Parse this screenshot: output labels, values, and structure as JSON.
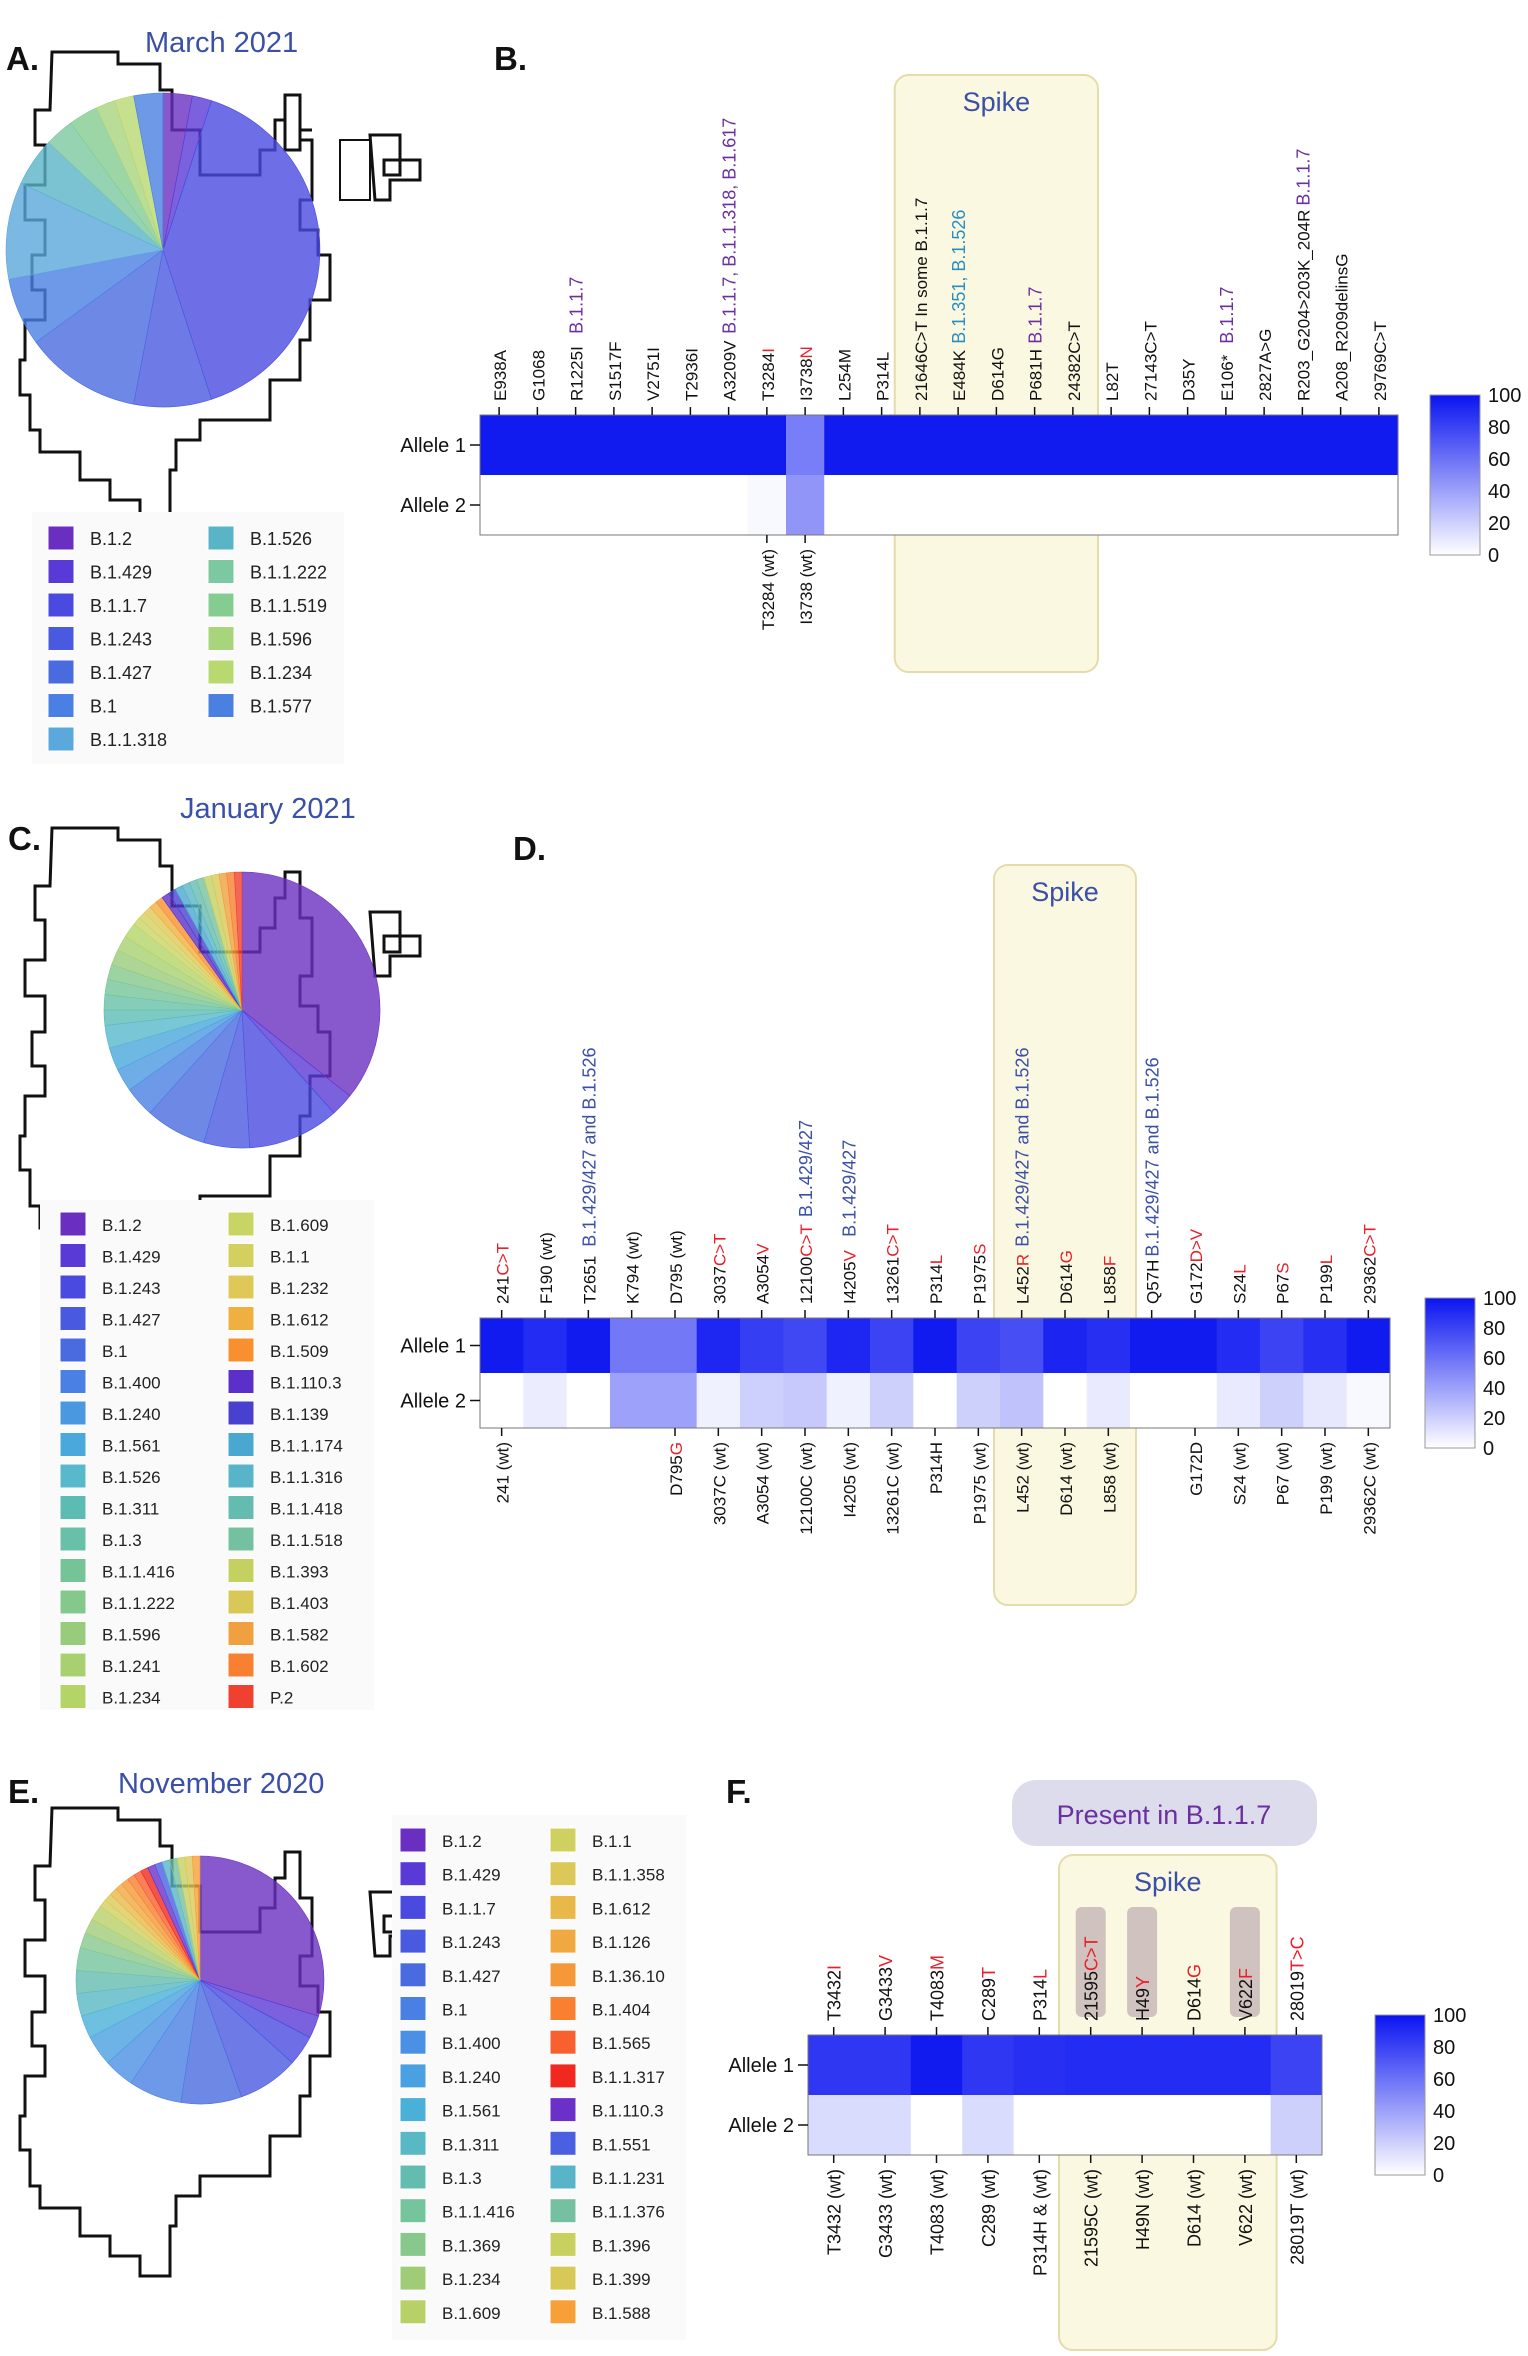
{
  "panels": {
    "A": {
      "letter": "A.",
      "title": "March 2021"
    },
    "B": {
      "letter": "B."
    },
    "C": {
      "letter": "C.",
      "title": "January 2021"
    },
    "D": {
      "letter": "D."
    },
    "E": {
      "letter": "E.",
      "title": "November 2020"
    },
    "F": {
      "letter": "F."
    }
  },
  "colors": {
    "title_blue": "#3a4fa8",
    "purple": "#6b2fa0",
    "teal": "#2a8fc0",
    "red": "#e8202a",
    "spike_fill": "#fbf8e2",
    "spike_stroke": "#e4dcaa",
    "heat_max": "#0a14f0",
    "present_box": "#dcdcec"
  },
  "legends": {
    "A": [
      {
        "label": "B.1.2",
        "color": "#6a2fc0"
      },
      {
        "label": "B.1.429",
        "color": "#5a3ad6"
      },
      {
        "label": "B.1.1.7",
        "color": "#4a4ae0"
      },
      {
        "label": "B.1.243",
        "color": "#4a5ae0"
      },
      {
        "label": "B.1.427",
        "color": "#4a6ae0"
      },
      {
        "label": "B.1",
        "color": "#4a80e4"
      },
      {
        "label": "B.1.1.318",
        "color": "#5aa8dc"
      },
      {
        "label": "B.1.526",
        "color": "#5ab4c8"
      },
      {
        "label": "B.1.1.222",
        "color": "#7cc8a0"
      },
      {
        "label": "B.1.1.519",
        "color": "#84cc90"
      },
      {
        "label": "B.1.596",
        "color": "#a8d47c"
      },
      {
        "label": "B.1.234",
        "color": "#b8d870"
      },
      {
        "label": "B.1.577",
        "color": "#4a80e0"
      }
    ],
    "C": [
      {
        "label": "B.1.2",
        "color": "#6a2fc0"
      },
      {
        "label": "B.1.429",
        "color": "#5a3ad6"
      },
      {
        "label": "B.1.243",
        "color": "#4a4ae0"
      },
      {
        "label": "B.1.427",
        "color": "#4a5ae0"
      },
      {
        "label": "B.1",
        "color": "#4a6ae0"
      },
      {
        "label": "B.1.400",
        "color": "#4a80e4"
      },
      {
        "label": "B.1.240",
        "color": "#4a98e0"
      },
      {
        "label": "B.1.561",
        "color": "#4aa8dc"
      },
      {
        "label": "B.1.526",
        "color": "#58b8cc"
      },
      {
        "label": "B.1.311",
        "color": "#5cbcb4"
      },
      {
        "label": "B.1.3",
        "color": "#68c0a8"
      },
      {
        "label": "B.1.1.416",
        "color": "#74c498"
      },
      {
        "label": "B.1.1.222",
        "color": "#84c88c"
      },
      {
        "label": "B.1.596",
        "color": "#98cc7c"
      },
      {
        "label": "B.1.241",
        "color": "#a8d070"
      },
      {
        "label": "B.1.234",
        "color": "#b4d468"
      },
      {
        "label": "B.1.609",
        "color": "#c8d464"
      },
      {
        "label": "B.1.1",
        "color": "#d4d060"
      },
      {
        "label": "B.1.232",
        "color": "#e0c858"
      },
      {
        "label": "B.1.612",
        "color": "#f0b040"
      },
      {
        "label": "B.1.509",
        "color": "#f89030"
      },
      {
        "label": "B.1.110.3",
        "color": "#5a30c8"
      },
      {
        "label": "B.1.139",
        "color": "#4a40d0"
      },
      {
        "label": "B.1.1.174",
        "color": "#4aa8d0"
      },
      {
        "label": "B.1.1.316",
        "color": "#58b4c8"
      },
      {
        "label": "B.1.1.418",
        "color": "#64bcb0"
      },
      {
        "label": "B.1.1.518",
        "color": "#74c0a0"
      },
      {
        "label": "B.1.393",
        "color": "#c4d060"
      },
      {
        "label": "B.1.403",
        "color": "#d8c858"
      },
      {
        "label": "B.1.582",
        "color": "#f0a040"
      },
      {
        "label": "B.1.602",
        "color": "#f88030"
      },
      {
        "label": "P.2",
        "color": "#f04030"
      }
    ],
    "E": [
      {
        "label": "B.1.2",
        "color": "#6a2fc0"
      },
      {
        "label": "B.1.429",
        "color": "#5a3ad6"
      },
      {
        "label": "B.1.1.7",
        "color": "#4a4ae0"
      },
      {
        "label": "B.1.243",
        "color": "#4a5ae0"
      },
      {
        "label": "B.1.427",
        "color": "#4a6ae0"
      },
      {
        "label": "B.1",
        "color": "#4a80e4"
      },
      {
        "label": "B.1.400",
        "color": "#4a90e4"
      },
      {
        "label": "B.1.240",
        "color": "#4aa0e0"
      },
      {
        "label": "B.1.561",
        "color": "#4ab0d8"
      },
      {
        "label": "B.1.311",
        "color": "#58b8c4"
      },
      {
        "label": "B.1.3",
        "color": "#64bcb0"
      },
      {
        "label": "B.1.1.416",
        "color": "#74c49c"
      },
      {
        "label": "B.1.369",
        "color": "#88c88c"
      },
      {
        "label": "B.1.234",
        "color": "#a0cc78"
      },
      {
        "label": "B.1.609",
        "color": "#b8d068"
      },
      {
        "label": "B.1.1",
        "color": "#d0d060"
      },
      {
        "label": "B.1.1.358",
        "color": "#dcc858"
      },
      {
        "label": "B.1.612",
        "color": "#e8b848"
      },
      {
        "label": "B.1.126",
        "color": "#f0a840"
      },
      {
        "label": "B.1.36.10",
        "color": "#f49838"
      },
      {
        "label": "B.1.404",
        "color": "#f88030"
      },
      {
        "label": "B.1.565",
        "color": "#f86030"
      },
      {
        "label": "B.1.1.317",
        "color": "#f02820"
      },
      {
        "label": "B.1.110.3",
        "color": "#6a30c8"
      },
      {
        "label": "B.1.551",
        "color": "#4a60e0"
      },
      {
        "label": "B.1.1.231",
        "color": "#58b4c8"
      },
      {
        "label": "B.1.1.376",
        "color": "#74c0a0"
      },
      {
        "label": "B.1.396",
        "color": "#c8d060"
      },
      {
        "label": "B.1.399",
        "color": "#d8c858"
      },
      {
        "label": "B.1.588",
        "color": "#f8a038"
      }
    ]
  },
  "heatmaps": {
    "B": {
      "row_labels": [
        "Allele 1",
        "Allele 2"
      ],
      "colorbar_ticks": [
        "100",
        "80",
        "60",
        "40",
        "20",
        "0"
      ],
      "spike_label": "Spike",
      "top_labels": [
        [
          {
            "t": "E938A"
          }
        ],
        [
          {
            "t": "G1068"
          }
        ],
        [
          {
            "t": "R1225I"
          }
        ],
        [
          {
            "t": "S1517F"
          }
        ],
        [
          {
            "t": "V2751I"
          }
        ],
        [
          {
            "t": "T2936I"
          }
        ],
        [
          {
            "t": "A3209V"
          }
        ],
        [
          {
            "t": "T3284"
          },
          {
            "t": "I",
            "c": "red"
          }
        ],
        [
          {
            "t": "I3738"
          },
          {
            "t": "N",
            "c": "red"
          }
        ],
        [
          {
            "t": "L254M"
          }
        ],
        [
          {
            "t": "P314L"
          }
        ],
        [
          {
            "t": "21646C>T In some B.1.1.7"
          }
        ],
        [
          {
            "t": "E484K"
          }
        ],
        [
          {
            "t": "D614G"
          }
        ],
        [
          {
            "t": "P681H"
          }
        ],
        [
          {
            "t": "24382C>T"
          }
        ],
        [
          {
            "t": "L82T"
          }
        ],
        [
          {
            "t": "27143C>T"
          }
        ],
        [
          {
            "t": "D35Y"
          }
        ],
        [
          {
            "t": "E106*"
          }
        ],
        [
          {
            "t": "2827A>G"
          }
        ],
        [
          {
            "t": "R203_G204>203K_204R"
          }
        ],
        [
          {
            "t": "A208_R209delinsG"
          }
        ],
        [
          {
            "t": "29769C>T"
          }
        ]
      ],
      "annotations": [
        {
          "col": 2,
          "text": "B.1.1.7",
          "c": "purple"
        },
        {
          "col": 6,
          "text": "B.1.1.7, B.1.1.318, B.1.617",
          "c": "purple"
        },
        {
          "col": 12,
          "text": "B.1.351, B.1.526",
          "c": "teal"
        },
        {
          "col": 14,
          "text": "B.1.1.7",
          "c": "purple"
        },
        {
          "col": 19,
          "text": "B.1.1.7",
          "c": "purple"
        },
        {
          "col": 21,
          "text": "B.1.1.7",
          "c": "purple"
        }
      ],
      "bottom_labels": [
        [],
        [],
        [],
        [],
        [],
        [],
        [],
        [
          {
            "t": "T3284 (wt)"
          }
        ],
        [
          {
            "t": "I3738 (wt)"
          }
        ],
        [],
        [],
        [],
        [],
        [],
        [],
        [],
        [],
        [],
        [],
        [],
        [],
        [],
        [],
        []
      ],
      "allele1": [
        97,
        97,
        97,
        97,
        97,
        97,
        97,
        97,
        55,
        97,
        97,
        97,
        97,
        97,
        97,
        97,
        97,
        97,
        97,
        97,
        97,
        97,
        97,
        97
      ],
      "allele2": [
        0,
        0,
        0,
        0,
        0,
        0,
        0,
        3,
        45,
        0,
        0,
        0,
        0,
        0,
        0,
        0,
        0,
        0,
        0,
        0,
        0,
        0,
        0,
        0
      ],
      "spike_cols": [
        11,
        15
      ]
    },
    "D": {
      "row_labels": [
        "Allele 1",
        "Allele 2"
      ],
      "colorbar_ticks": [
        "100",
        "80",
        "60",
        "40",
        "20",
        "0"
      ],
      "spike_label": "Spike",
      "top_labels": [
        [
          {
            "t": "241"
          },
          {
            "t": "C>T",
            "c": "red"
          }
        ],
        [
          {
            "t": "F190 (wt)"
          }
        ],
        [
          {
            "t": "T2651"
          }
        ],
        [
          {
            "t": "K794 (wt)"
          }
        ],
        [
          {
            "t": "D795 (wt)"
          }
        ],
        [
          {
            "t": "3037"
          },
          {
            "t": "C>T",
            "c": "red"
          }
        ],
        [
          {
            "t": "A3054"
          },
          {
            "t": "V",
            "c": "red"
          }
        ],
        [
          {
            "t": "12100"
          },
          {
            "t": "C>T",
            "c": "red"
          }
        ],
        [
          {
            "t": "I4205"
          },
          {
            "t": "V",
            "c": "red"
          }
        ],
        [
          {
            "t": "13261"
          },
          {
            "t": "C>T",
            "c": "red"
          }
        ],
        [
          {
            "t": "P314"
          },
          {
            "t": "L",
            "c": "red"
          }
        ],
        [
          {
            "t": "P1975"
          },
          {
            "t": "S",
            "c": "red"
          }
        ],
        [
          {
            "t": "L452"
          },
          {
            "t": "R",
            "c": "red"
          }
        ],
        [
          {
            "t": "D614"
          },
          {
            "t": "G",
            "c": "red"
          }
        ],
        [
          {
            "t": "L858"
          },
          {
            "t": "F",
            "c": "red"
          }
        ],
        [
          {
            "t": "Q57H"
          }
        ],
        [
          {
            "t": "G172"
          },
          {
            "t": "D>V",
            "c": "red"
          }
        ],
        [
          {
            "t": "S24"
          },
          {
            "t": "L",
            "c": "red"
          }
        ],
        [
          {
            "t": "P67"
          },
          {
            "t": "S",
            "c": "red"
          }
        ],
        [
          {
            "t": "P199"
          },
          {
            "t": "L",
            "c": "red"
          }
        ],
        [
          {
            "t": "29362"
          },
          {
            "t": "C>T",
            "c": "red"
          }
        ]
      ],
      "annotations": [
        {
          "col": 2,
          "text": "B.1.429/427 and B.1.526",
          "c": "blue"
        },
        {
          "col": 7,
          "text": "B.1.429/427",
          "c": "blue"
        },
        {
          "col": 8,
          "text": "B.1.429/427",
          "c": "blue"
        },
        {
          "col": 12,
          "text": "B.1.429/427 and B.1.526",
          "c": "blue"
        },
        {
          "col": 15,
          "text": "B.1.429/427 and B.1.526",
          "c": "blue"
        }
      ],
      "bottom_labels": [
        [
          {
            "t": "241 (wt)"
          }
        ],
        [],
        [],
        [],
        [
          {
            "t": "D795"
          },
          {
            "t": "G",
            "c": "red"
          }
        ],
        [
          {
            "t": "3037C (wt)"
          }
        ],
        [
          {
            "t": "A3054 (wt)"
          }
        ],
        [
          {
            "t": "12100C (wt)"
          }
        ],
        [
          {
            "t": "I4205 (wt)"
          }
        ],
        [
          {
            "t": "13261C (wt)"
          }
        ],
        [
          {
            "t": "P314H"
          }
        ],
        [
          {
            "t": "P1975 (wt)"
          }
        ],
        [
          {
            "t": "L452 (wt)"
          }
        ],
        [
          {
            "t": "D614 (wt)"
          }
        ],
        [
          {
            "t": "L858 (wt)"
          }
        ],
        [],
        [
          {
            "t": "G172D"
          }
        ],
        [
          {
            "t": "S24 (wt)"
          }
        ],
        [
          {
            "t": "P67 (wt)"
          }
        ],
        [
          {
            "t": "P199 (wt)"
          }
        ],
        [
          {
            "t": "29362C (wt)"
          }
        ]
      ],
      "allele1": [
        97,
        90,
        97,
        57,
        57,
        92,
        82,
        78,
        92,
        80,
        97,
        80,
        75,
        93,
        88,
        97,
        97,
        90,
        80,
        88,
        97
      ],
      "allele2": [
        0,
        8,
        0,
        40,
        40,
        6,
        20,
        23,
        6,
        20,
        0,
        20,
        26,
        0,
        9,
        0,
        0,
        9,
        20,
        10,
        3
      ],
      "spike_cols": [
        12,
        14
      ]
    },
    "F": {
      "row_labels": [
        "Allele 1",
        "Allele 2"
      ],
      "colorbar_ticks": [
        "100",
        "80",
        "60",
        "40",
        "20",
        "0"
      ],
      "spike_label": "Spike",
      "present_label": "Present in B.1.1.7",
      "top_labels": [
        [
          {
            "t": "T3432"
          },
          {
            "t": "I",
            "c": "red"
          }
        ],
        [
          {
            "t": "G3433"
          },
          {
            "t": "V",
            "c": "red"
          }
        ],
        [
          {
            "t": "T4083"
          },
          {
            "t": "M",
            "c": "red"
          }
        ],
        [
          {
            "t": "C289"
          },
          {
            "t": "T",
            "c": "red"
          }
        ],
        [
          {
            "t": "P314"
          },
          {
            "t": "L",
            "c": "red"
          }
        ],
        [
          {
            "t": "21595"
          },
          {
            "t": "C>T",
            "c": "red"
          }
        ],
        [
          {
            "t": "H49"
          },
          {
            "t": "Y",
            "c": "red"
          }
        ],
        [
          {
            "t": "D614"
          },
          {
            "t": "G",
            "c": "red"
          }
        ],
        [
          {
            "t": "V622"
          },
          {
            "t": "F",
            "c": "red"
          }
        ],
        [
          {
            "t": "28019"
          },
          {
            "t": "T>C",
            "c": "red"
          }
        ]
      ],
      "highlighted_cols": [
        5,
        6,
        8
      ],
      "bottom_labels": [
        [
          {
            "t": "T3432 (wt)"
          }
        ],
        [
          {
            "t": "G3433 (wt)"
          }
        ],
        [
          {
            "t": "T4083 (wt)"
          }
        ],
        [
          {
            "t": "C289 (wt)"
          }
        ],
        [
          {
            "t": "P314H & (wt)"
          }
        ],
        [
          {
            "t": "21595C (wt)"
          }
        ],
        [
          {
            "t": "H49N (wt)"
          }
        ],
        [
          {
            "t": "D614 (wt)"
          }
        ],
        [
          {
            "t": "V622 (wt)"
          }
        ],
        [
          {
            "t": "28019T (wt)"
          }
        ]
      ],
      "allele1": [
        85,
        85,
        97,
        85,
        88,
        90,
        90,
        90,
        90,
        80
      ],
      "allele2": [
        15,
        15,
        0,
        15,
        0,
        0,
        0,
        0,
        0,
        20
      ],
      "spike_cols": [
        5,
        8
      ]
    }
  }
}
